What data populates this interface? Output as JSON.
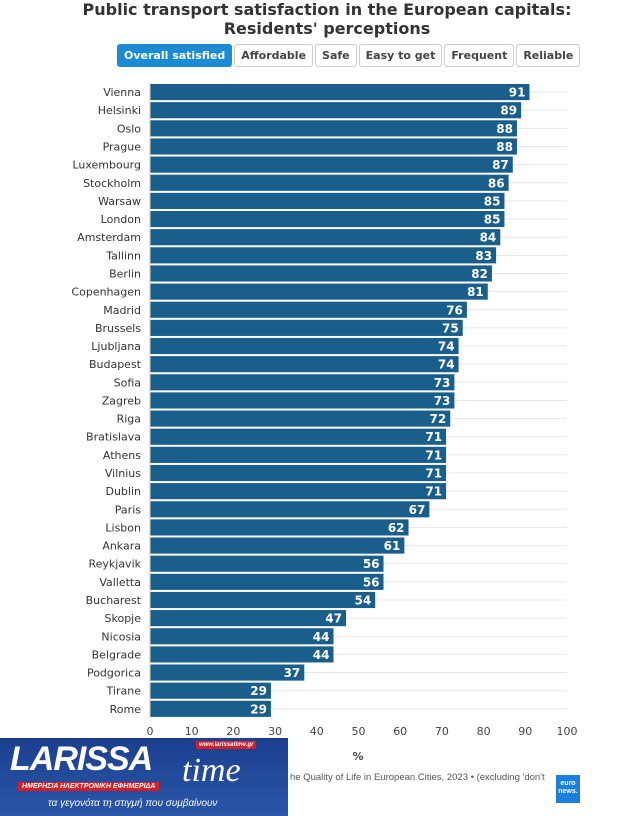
{
  "chart_data": {
    "type": "bar",
    "orientation": "horizontal",
    "title": "Public transport satisfaction in the European capitals: Residents' perceptions",
    "title_lines": [
      "Public transport satisfaction in the European capitals:",
      "Residents' perceptions"
    ],
    "categories": [
      "Vienna",
      "Helsinki",
      "Oslo",
      "Prague",
      "Luxembourg",
      "Stockholm",
      "Warsaw",
      "London",
      "Amsterdam",
      "Tallinn",
      "Berlin",
      "Copenhagen",
      "Madrid",
      "Brussels",
      "Ljubljana",
      "Budapest",
      "Sofia",
      "Zagreb",
      "Riga",
      "Bratislava",
      "Athens",
      "Vilnius",
      "Dublin",
      "Paris",
      "Lisbon",
      "Ankara",
      "Reykjavik",
      "Valletta",
      "Bucharest",
      "Skopje",
      "Nicosia",
      "Belgrade",
      "Podgorica",
      "Tirane",
      "Rome"
    ],
    "values": [
      91,
      89,
      88,
      88,
      87,
      86,
      85,
      85,
      84,
      83,
      82,
      81,
      76,
      75,
      74,
      74,
      73,
      73,
      72,
      71,
      71,
      71,
      71,
      67,
      62,
      61,
      56,
      56,
      54,
      47,
      44,
      44,
      37,
      29,
      29
    ],
    "xlabel": "%",
    "xlim": [
      0,
      100
    ],
    "xticks": [
      0,
      10,
      20,
      30,
      40,
      50,
      60,
      70,
      80,
      90,
      100
    ],
    "grid": true,
    "bar_color": "#1a5f8c"
  },
  "tabs": [
    {
      "label": "Overall satisfied",
      "active": true
    },
    {
      "label": "Affordable",
      "active": false
    },
    {
      "label": "Safe",
      "active": false
    },
    {
      "label": "Easy to get",
      "active": false
    },
    {
      "label": "Frequent",
      "active": false
    },
    {
      "label": "Reliable",
      "active": false
    }
  ],
  "source": "he Quality of Life in European Cities, 2023 • (excluding 'don't",
  "watermark": {
    "name": "LARISSA time",
    "url": "www.larissatime.gr",
    "subtitle": "ΗΜΕΡΗΣΙΑ ΗΛΕΚΤΡΟΝΙΚΗ ΕΦΗΜΕΡΙΔΑ",
    "tagline": "τα γεγονότα τη στιγμή που συμβαίνουν"
  },
  "brand_logo": "euronews."
}
